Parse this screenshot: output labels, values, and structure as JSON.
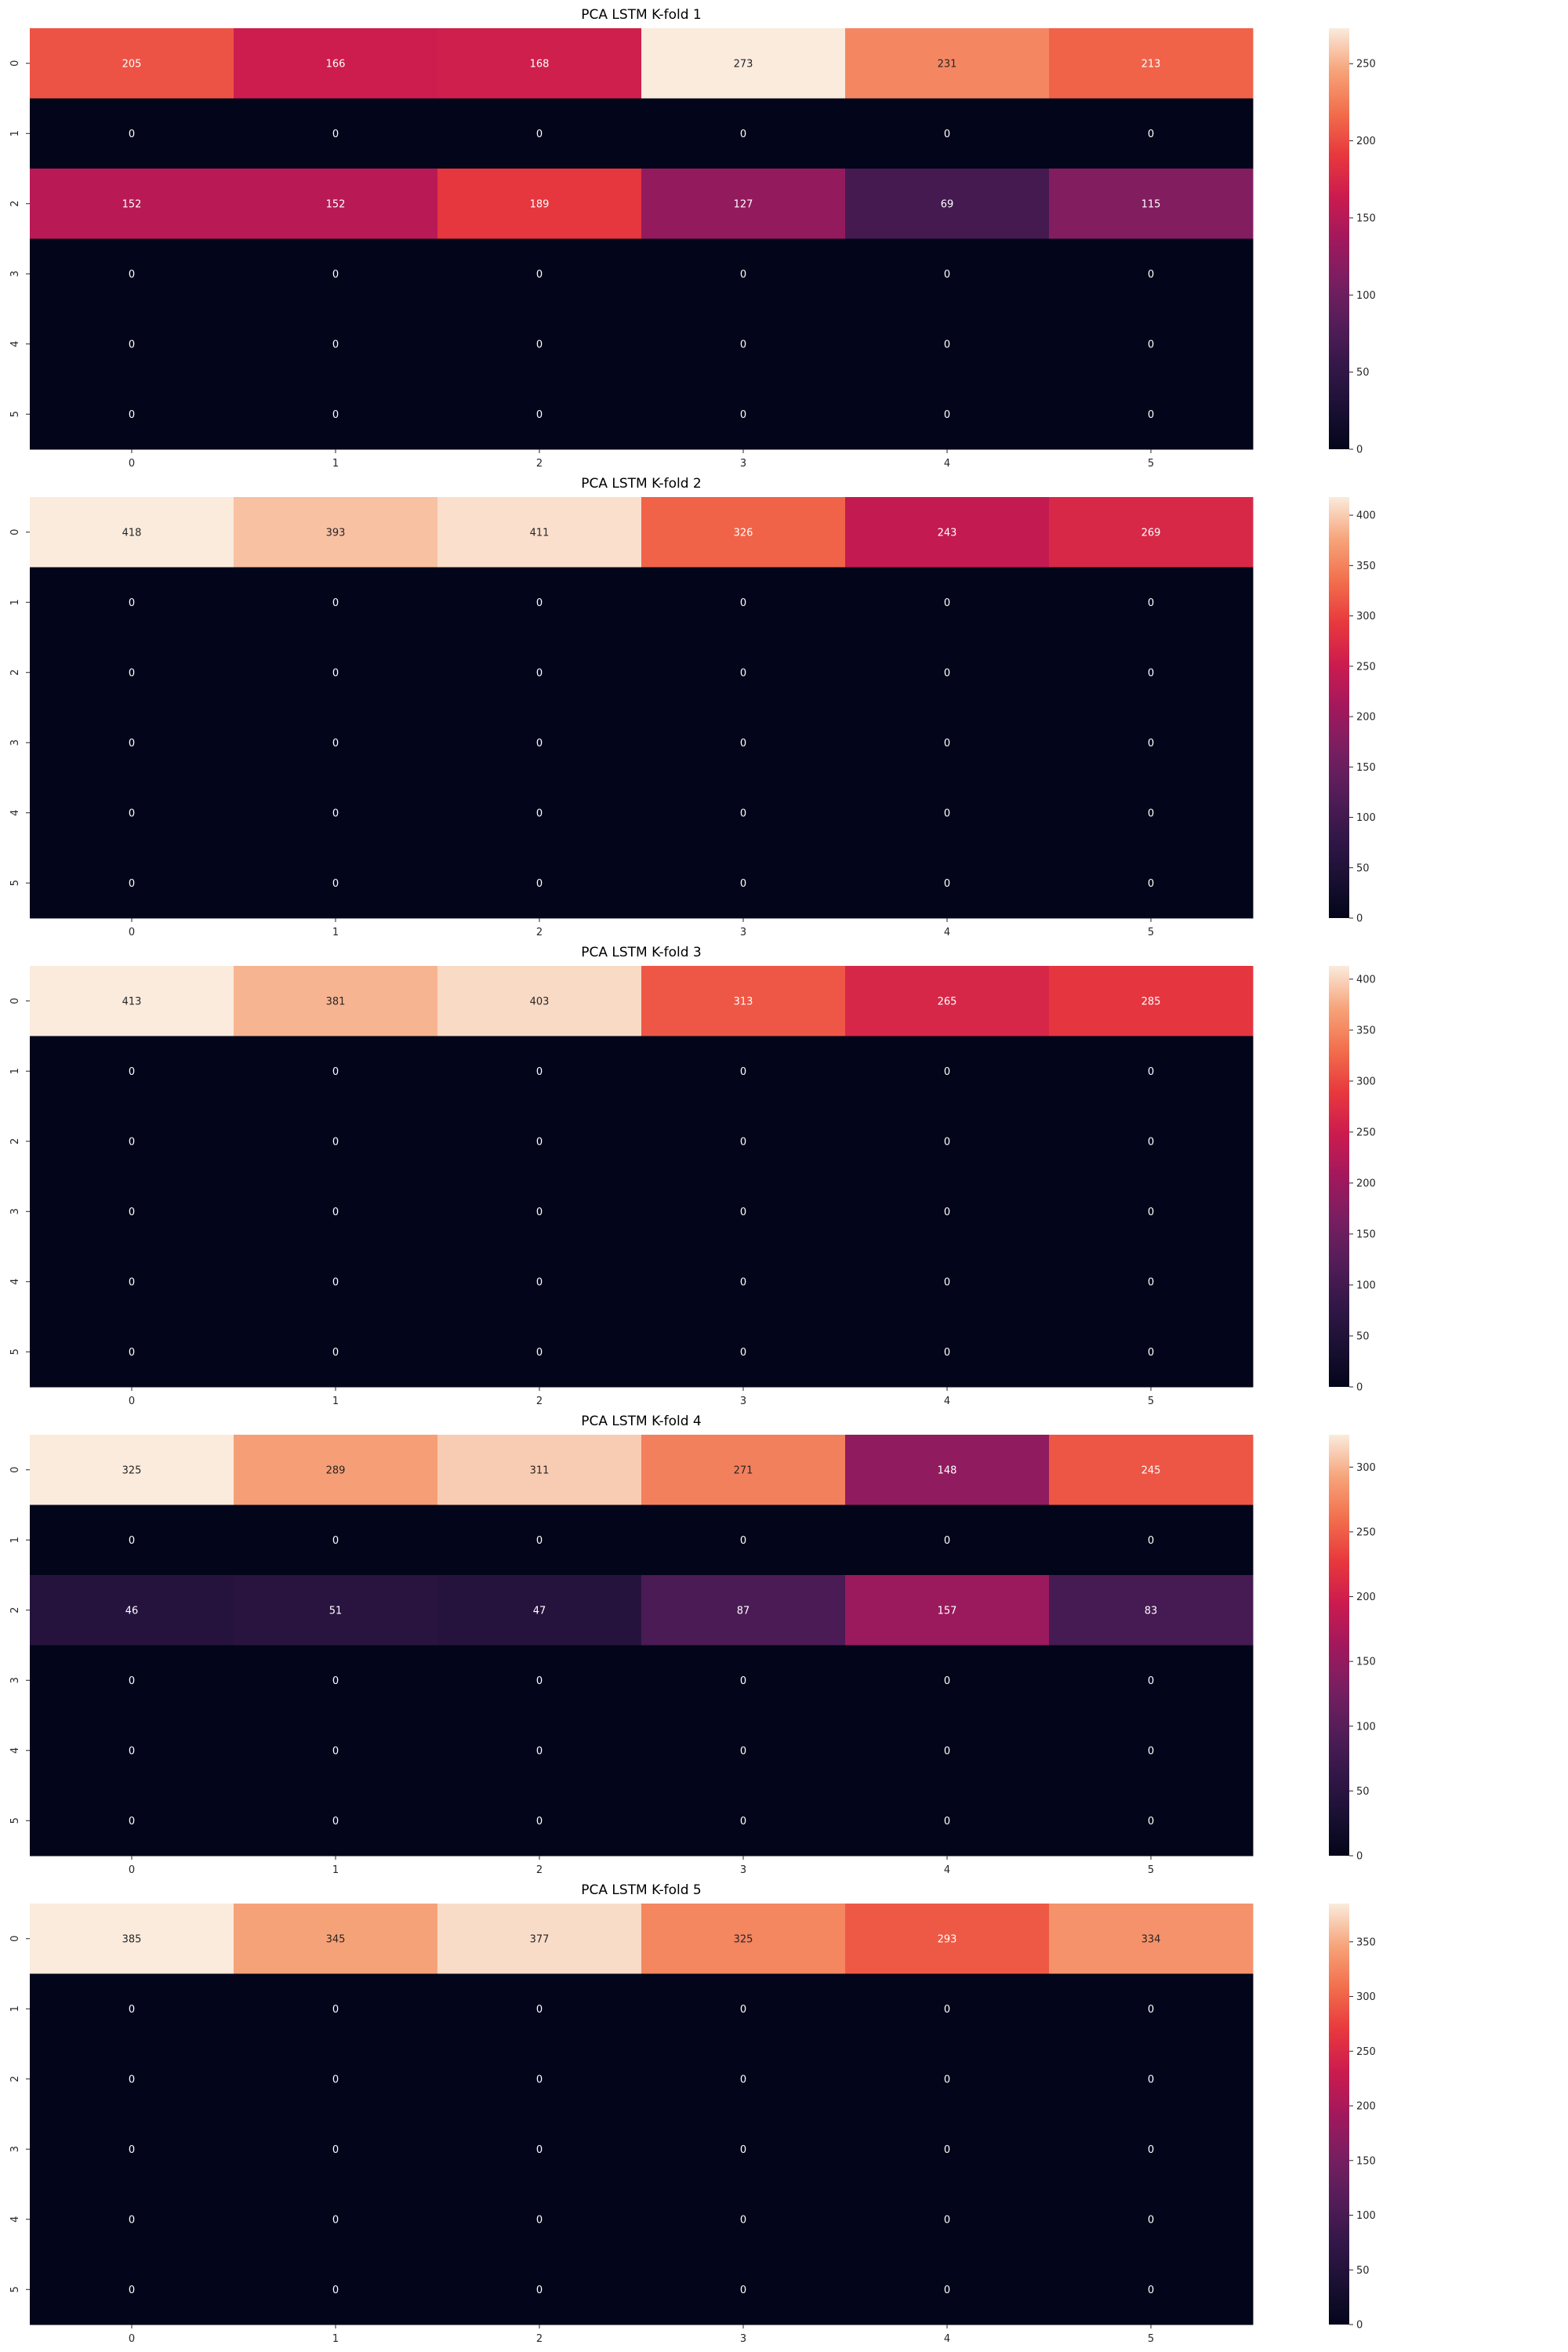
{
  "colormap": "rocket",
  "chart_data": [
    {
      "type": "heatmap",
      "title": "PCA LSTM K-fold 1",
      "x_ticks": [
        "0",
        "1",
        "2",
        "3",
        "4",
        "5"
      ],
      "y_ticks": [
        "0",
        "1",
        "2",
        "3",
        "4",
        "5"
      ],
      "values": [
        [
          205,
          166,
          168,
          273,
          231,
          213
        ],
        [
          0,
          0,
          0,
          0,
          0,
          0
        ],
        [
          152,
          152,
          189,
          127,
          69,
          115
        ],
        [
          0,
          0,
          0,
          0,
          0,
          0
        ],
        [
          0,
          0,
          0,
          0,
          0,
          0
        ],
        [
          0,
          0,
          0,
          0,
          0,
          0
        ]
      ],
      "vmin": 0,
      "vmax": 273,
      "colorbar_ticks": [
        0,
        50,
        100,
        150,
        200,
        250
      ]
    },
    {
      "type": "heatmap",
      "title": "PCA LSTM K-fold 2",
      "x_ticks": [
        "0",
        "1",
        "2",
        "3",
        "4",
        "5"
      ],
      "y_ticks": [
        "0",
        "1",
        "2",
        "3",
        "4",
        "5"
      ],
      "values": [
        [
          418,
          393,
          411,
          326,
          243,
          269
        ],
        [
          0,
          0,
          0,
          0,
          0,
          0
        ],
        [
          0,
          0,
          0,
          0,
          0,
          0
        ],
        [
          0,
          0,
          0,
          0,
          0,
          0
        ],
        [
          0,
          0,
          0,
          0,
          0,
          0
        ],
        [
          0,
          0,
          0,
          0,
          0,
          0
        ]
      ],
      "vmin": 0,
      "vmax": 418,
      "colorbar_ticks": [
        0,
        50,
        100,
        150,
        200,
        250,
        300,
        350,
        400
      ]
    },
    {
      "type": "heatmap",
      "title": "PCA LSTM K-fold 3",
      "x_ticks": [
        "0",
        "1",
        "2",
        "3",
        "4",
        "5"
      ],
      "y_ticks": [
        "0",
        "1",
        "2",
        "3",
        "4",
        "5"
      ],
      "values": [
        [
          413,
          381,
          403,
          313,
          265,
          285
        ],
        [
          0,
          0,
          0,
          0,
          0,
          0
        ],
        [
          0,
          0,
          0,
          0,
          0,
          0
        ],
        [
          0,
          0,
          0,
          0,
          0,
          0
        ],
        [
          0,
          0,
          0,
          0,
          0,
          0
        ],
        [
          0,
          0,
          0,
          0,
          0,
          0
        ]
      ],
      "vmin": 0,
      "vmax": 413,
      "colorbar_ticks": [
        0,
        50,
        100,
        150,
        200,
        250,
        300,
        350,
        400
      ]
    },
    {
      "type": "heatmap",
      "title": "PCA LSTM K-fold 4",
      "x_ticks": [
        "0",
        "1",
        "2",
        "3",
        "4",
        "5"
      ],
      "y_ticks": [
        "0",
        "1",
        "2",
        "3",
        "4",
        "5"
      ],
      "values": [
        [
          325,
          289,
          311,
          271,
          148,
          245
        ],
        [
          0,
          0,
          0,
          0,
          0,
          0
        ],
        [
          46,
          51,
          47,
          87,
          157,
          83
        ],
        [
          0,
          0,
          0,
          0,
          0,
          0
        ],
        [
          0,
          0,
          0,
          0,
          0,
          0
        ],
        [
          0,
          0,
          0,
          0,
          0,
          0
        ]
      ],
      "vmin": 0,
      "vmax": 325,
      "colorbar_ticks": [
        0,
        50,
        100,
        150,
        200,
        250,
        300
      ]
    },
    {
      "type": "heatmap",
      "title": "PCA LSTM K-fold 5",
      "x_ticks": [
        "0",
        "1",
        "2",
        "3",
        "4",
        "5"
      ],
      "y_ticks": [
        "0",
        "1",
        "2",
        "3",
        "4",
        "5"
      ],
      "values": [
        [
          385,
          345,
          377,
          325,
          293,
          334
        ],
        [
          0,
          0,
          0,
          0,
          0,
          0
        ],
        [
          0,
          0,
          0,
          0,
          0,
          0
        ],
        [
          0,
          0,
          0,
          0,
          0,
          0
        ],
        [
          0,
          0,
          0,
          0,
          0,
          0
        ],
        [
          0,
          0,
          0,
          0,
          0,
          0
        ]
      ],
      "vmin": 0,
      "vmax": 385,
      "colorbar_ticks": [
        0,
        50,
        100,
        150,
        200,
        250,
        300,
        350
      ]
    }
  ]
}
